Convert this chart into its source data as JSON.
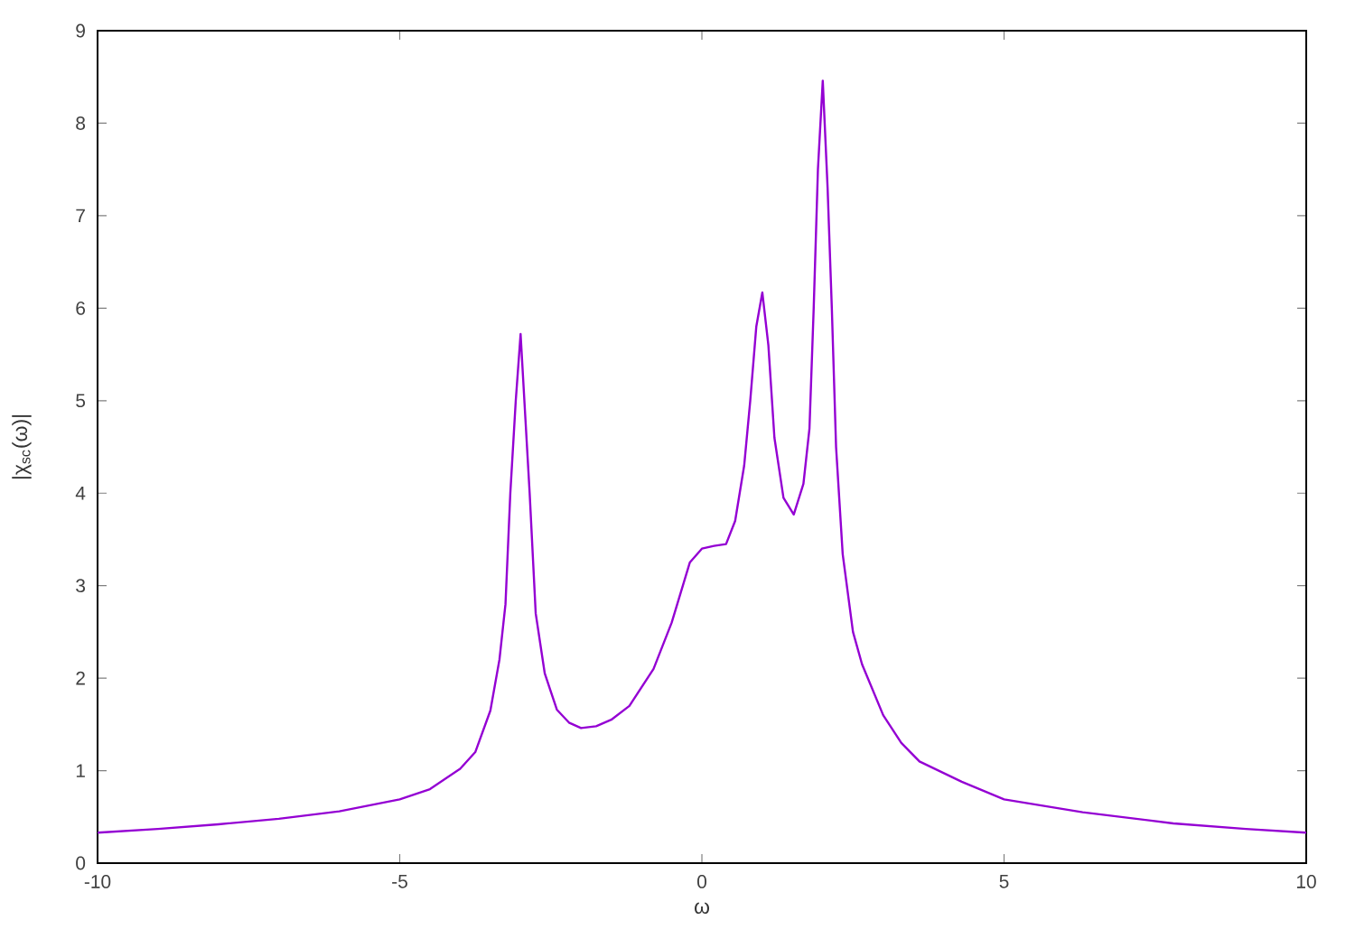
{
  "chart_data": {
    "type": "line",
    "xlabel": "ω",
    "ylabel": "|χ$_{sc}$(ω)|",
    "x": [
      -10,
      -9,
      -8,
      -7,
      -6,
      -5,
      -4.5,
      -4,
      -3.75,
      -3.5,
      -3.35,
      -3.25,
      -3.17,
      -3.08,
      -3.0,
      -2.92,
      -2.85,
      -2.75,
      -2.6,
      -2.4,
      -2.2,
      -2.0,
      -1.75,
      -1.5,
      -1.2,
      -0.8,
      -0.5,
      -0.2,
      0.0,
      0.2,
      0.4,
      0.55,
      0.7,
      0.8,
      0.9,
      1.0,
      1.1,
      1.2,
      1.35,
      1.52,
      1.68,
      1.78,
      1.85,
      1.92,
      2.0,
      2.08,
      2.15,
      2.22,
      2.33,
      2.5,
      2.65,
      3.0,
      3.3,
      3.6,
      4.3,
      5.0,
      6.3,
      7.8,
      9,
      10
    ],
    "series": [
      {
        "color": "#9400d3",
        "values": [
          0.33,
          0.37,
          0.42,
          0.48,
          0.56,
          0.69,
          0.8,
          1.02,
          1.2,
          1.65,
          2.2,
          2.8,
          4.0,
          5.0,
          5.72,
          4.8,
          4.0,
          2.7,
          2.05,
          1.66,
          1.52,
          1.46,
          1.48,
          1.55,
          1.7,
          2.1,
          2.6,
          3.25,
          3.4,
          3.43,
          3.45,
          3.7,
          4.3,
          5.0,
          5.8,
          6.17,
          5.6,
          4.6,
          3.95,
          3.77,
          4.1,
          4.7,
          6.0,
          7.5,
          8.46,
          7.3,
          6.0,
          4.5,
          3.34,
          2.5,
          2.15,
          1.6,
          1.3,
          1.1,
          0.88,
          0.69,
          0.55,
          0.43,
          0.37,
          0.33
        ]
      }
    ],
    "xlim": [
      -10,
      10
    ],
    "ylim": [
      0,
      9
    ],
    "xticks": [
      -10,
      -5,
      0,
      5,
      10
    ],
    "yticks": [
      0,
      1,
      2,
      3,
      4,
      5,
      6,
      7,
      8,
      9
    ]
  }
}
